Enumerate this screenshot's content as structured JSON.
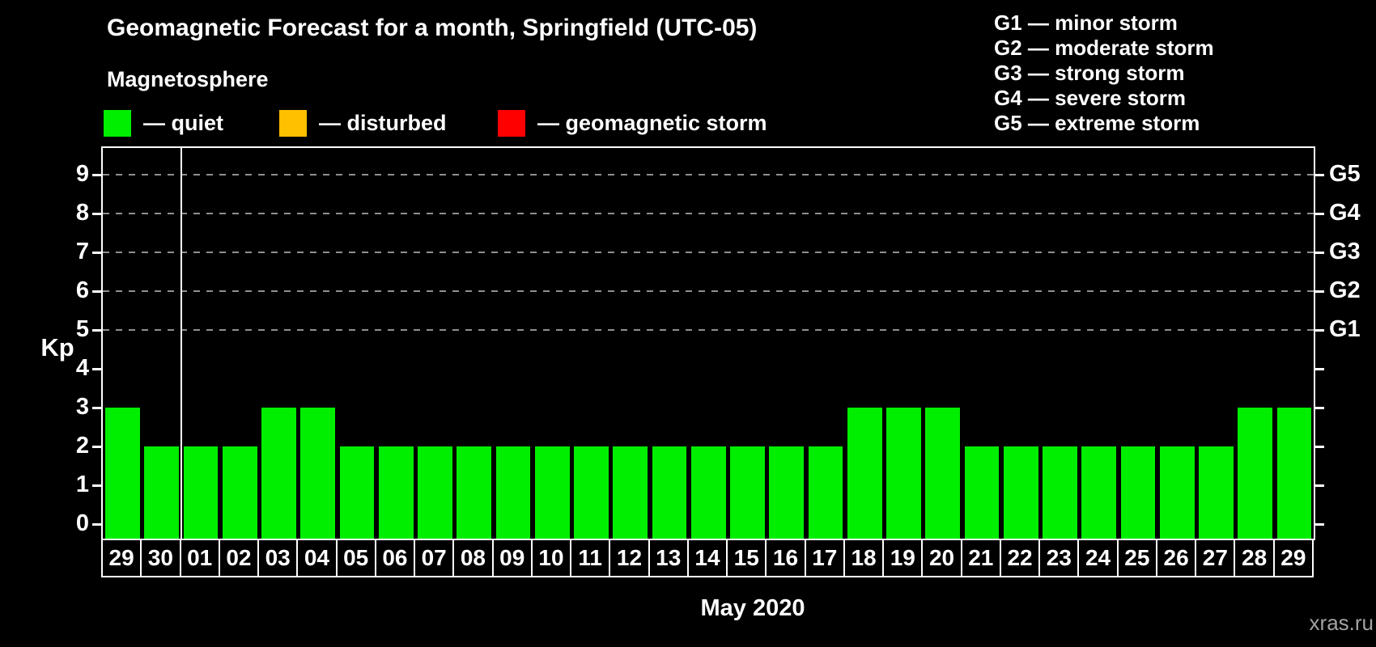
{
  "header": {
    "title": "Geomagnetic Forecast for a month, Springfield (UTC-05)",
    "subtitle": "Magnetosphere"
  },
  "legend": {
    "items": [
      {
        "name": "quiet",
        "label": "— quiet",
        "color": "#00ee00"
      },
      {
        "name": "disturbed",
        "label": "— disturbed",
        "color": "#ffc000"
      },
      {
        "name": "geomagnetic-storm",
        "label": "— geomagnetic storm",
        "color": "#ff0000"
      }
    ]
  },
  "g_legend": {
    "lines": [
      "G1 — minor storm",
      "G2 — moderate storm",
      "G3 — strong storm",
      "G4 — severe storm",
      "G5 — extreme storm"
    ]
  },
  "chart_data": {
    "type": "bar",
    "title": "Geomagnetic Forecast for a month, Springfield (UTC-05)",
    "xlabel": "May 2020",
    "ylabel": "Kp",
    "ylim": [
      0,
      9.7
    ],
    "y_ticks": [
      0,
      1,
      2,
      3,
      4,
      5,
      6,
      7,
      8,
      9
    ],
    "gridline_kp": [
      5,
      6,
      7,
      8,
      9
    ],
    "grid": "dashed horizontal at G-storm levels only",
    "legend_position": "top",
    "right_axis": [
      {
        "label": "G1",
        "kp": 5
      },
      {
        "label": "G2",
        "kp": 6
      },
      {
        "label": "G3",
        "kp": 7
      },
      {
        "label": "G4",
        "kp": 8
      },
      {
        "label": "G5",
        "kp": 9
      }
    ],
    "categories": [
      "29",
      "30",
      "01",
      "02",
      "03",
      "04",
      "05",
      "06",
      "07",
      "08",
      "09",
      "10",
      "11",
      "12",
      "13",
      "14",
      "15",
      "16",
      "17",
      "18",
      "19",
      "20",
      "21",
      "22",
      "23",
      "24",
      "25",
      "26",
      "27",
      "28",
      "29"
    ],
    "values": [
      3,
      2,
      2,
      2,
      3,
      3,
      2,
      2,
      2,
      2,
      2,
      2,
      2,
      2,
      2,
      2,
      2,
      2,
      2,
      3,
      3,
      3,
      2,
      2,
      2,
      2,
      2,
      2,
      2,
      3,
      3
    ],
    "series_status": "quiet",
    "bar_color": "#00ee00",
    "month_separator_after_index": 1
  },
  "footer": {
    "watermark": "xras.ru"
  }
}
